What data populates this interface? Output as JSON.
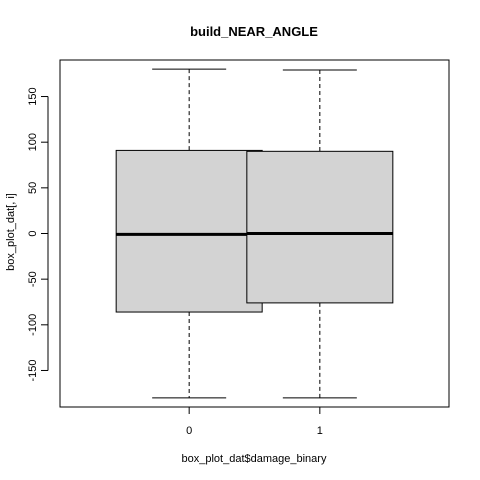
{
  "chart_data": {
    "type": "box",
    "title": "build_NEAR_ANGLE",
    "xlabel": "box_plot_dat$damage_binary",
    "ylabel": "box_plot_dat[, i]",
    "categories": [
      "0",
      "1"
    ],
    "ylim": [
      -190,
      190
    ],
    "yticks": [
      "150",
      "100",
      "50",
      "0",
      "-50",
      "-100",
      "-150"
    ],
    "boxes": [
      {
        "category": "0",
        "min": -180,
        "q1": -86,
        "median": -1,
        "q3": 91,
        "max": 180
      },
      {
        "category": "1",
        "min": -180,
        "q1": -76,
        "median": 0,
        "q3": 90,
        "max": 179
      }
    ],
    "box_fill": "#d3d3d3",
    "grid": false
  }
}
